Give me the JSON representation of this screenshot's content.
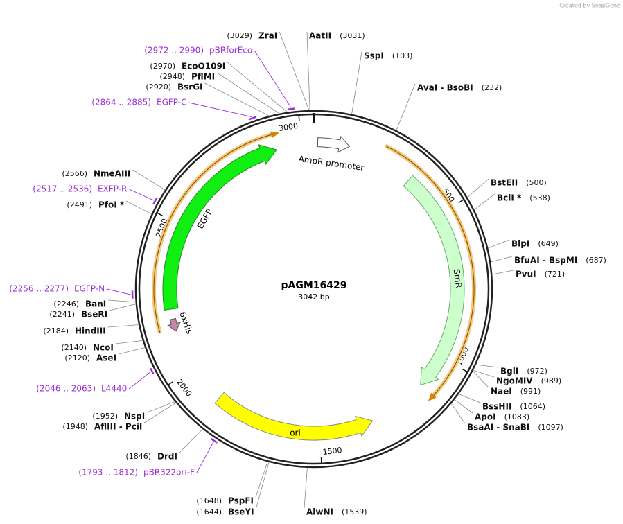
{
  "watermark": "Created by SnapGene",
  "plasmid": {
    "name": "pAGM16429",
    "length": {
      "value": 3042,
      "label": "3042 bp"
    }
  },
  "ticks": [
    500,
    1000,
    1500,
    2000,
    2500,
    3000
  ],
  "features": [
    {
      "name": "AmpR promoter"
    },
    {
      "name": "SmR"
    },
    {
      "name": "ori"
    },
    {
      "name": "EGFP"
    },
    {
      "name": "6xHis"
    }
  ],
  "enzymes": [
    {
      "name": "ZraI",
      "position": {
        "value": 3029,
        "label": "(3029)"
      }
    },
    {
      "name": "AatII",
      "position": {
        "value": 3031,
        "label": "(3031)"
      }
    },
    {
      "name": "SspI",
      "position": {
        "value": 103,
        "label": "(103)"
      }
    },
    {
      "name": "AvaI  -  BsoBI",
      "position": {
        "value": 232,
        "label": "(232)"
      }
    },
    {
      "name": "BstEII",
      "position": {
        "value": 500,
        "label": "(500)"
      }
    },
    {
      "name": "BclI *",
      "position": {
        "value": 538,
        "label": "(538)"
      }
    },
    {
      "name": "BlpI",
      "position": {
        "value": 649,
        "label": "(649)"
      }
    },
    {
      "name": "BfuAI  -  BspMI",
      "position": {
        "value": 687,
        "label": "(687)"
      }
    },
    {
      "name": "PvuI",
      "position": {
        "value": 721,
        "label": "(721)"
      }
    },
    {
      "name": "BglI",
      "position": {
        "value": 972,
        "label": "(972)"
      }
    },
    {
      "name": "NgoMIV",
      "position": {
        "value": 989,
        "label": "(989)"
      }
    },
    {
      "name": "NaeI",
      "position": {
        "value": 991,
        "label": "(991)"
      }
    },
    {
      "name": "BssHII",
      "position": {
        "value": 1064,
        "label": "(1064)"
      }
    },
    {
      "name": "ApoI",
      "position": {
        "value": 1083,
        "label": "(1083)"
      }
    },
    {
      "name": "BsaAI  -  SnaBI",
      "position": {
        "value": 1097,
        "label": "(1097)"
      }
    },
    {
      "name": "AlwNI",
      "position": {
        "value": 1539,
        "label": "(1539)"
      }
    },
    {
      "name": "BseYI",
      "position": {
        "value": 1644,
        "label": "(1644)"
      }
    },
    {
      "name": "PspFI",
      "position": {
        "value": 1648,
        "label": "(1648)"
      }
    },
    {
      "name": "DrdI",
      "position": {
        "value": 1846,
        "label": "(1846)"
      }
    },
    {
      "name": "AflIII  -  PciI",
      "position": {
        "value": 1948,
        "label": "(1948)"
      }
    },
    {
      "name": "NspI",
      "position": {
        "value": 1952,
        "label": "(1952)"
      }
    },
    {
      "name": "AseI",
      "position": {
        "value": 2120,
        "label": "(2120)"
      }
    },
    {
      "name": "NcoI",
      "position": {
        "value": 2140,
        "label": "(2140)"
      }
    },
    {
      "name": "HindIII",
      "position": {
        "value": 2184,
        "label": "(2184)"
      }
    },
    {
      "name": "BseRI",
      "position": {
        "value": 2241,
        "label": "(2241)"
      }
    },
    {
      "name": "BanI",
      "position": {
        "value": 2246,
        "label": "(2246)"
      }
    },
    {
      "name": "PfoI *",
      "position": {
        "value": 2491,
        "label": "(2491)"
      }
    },
    {
      "name": "NmeAIII",
      "position": {
        "value": 2566,
        "label": "(2566)"
      }
    },
    {
      "name": "BsrGI",
      "position": {
        "value": 2920,
        "label": "(2920)"
      }
    },
    {
      "name": "PflMI",
      "position": {
        "value": 2948,
        "label": "(2948)"
      }
    },
    {
      "name": "EcoO109I",
      "position": {
        "value": 2970,
        "label": "(2970)"
      }
    }
  ],
  "primers": [
    {
      "name": "pBRforEco",
      "range": {
        "start": 2972,
        "end": 2990,
        "label": "(2972 .. 2990)"
      }
    },
    {
      "name": "EGFP-C",
      "range": {
        "start": 2864,
        "end": 2885,
        "label": "(2864 .. 2885)"
      }
    },
    {
      "name": "EXFP-R",
      "range": {
        "start": 2517,
        "end": 2536,
        "label": "(2517 .. 2536)"
      }
    },
    {
      "name": "EGFP-N",
      "range": {
        "start": 2256,
        "end": 2277,
        "label": "(2256 .. 2277)"
      }
    },
    {
      "name": "L4440",
      "range": {
        "start": 2046,
        "end": 2063,
        "label": "(2046 .. 2063)"
      }
    },
    {
      "name": "pBR322ori-F",
      "range": {
        "start": 1793,
        "end": 1812,
        "label": "(1793 .. 1812)"
      }
    }
  ]
}
